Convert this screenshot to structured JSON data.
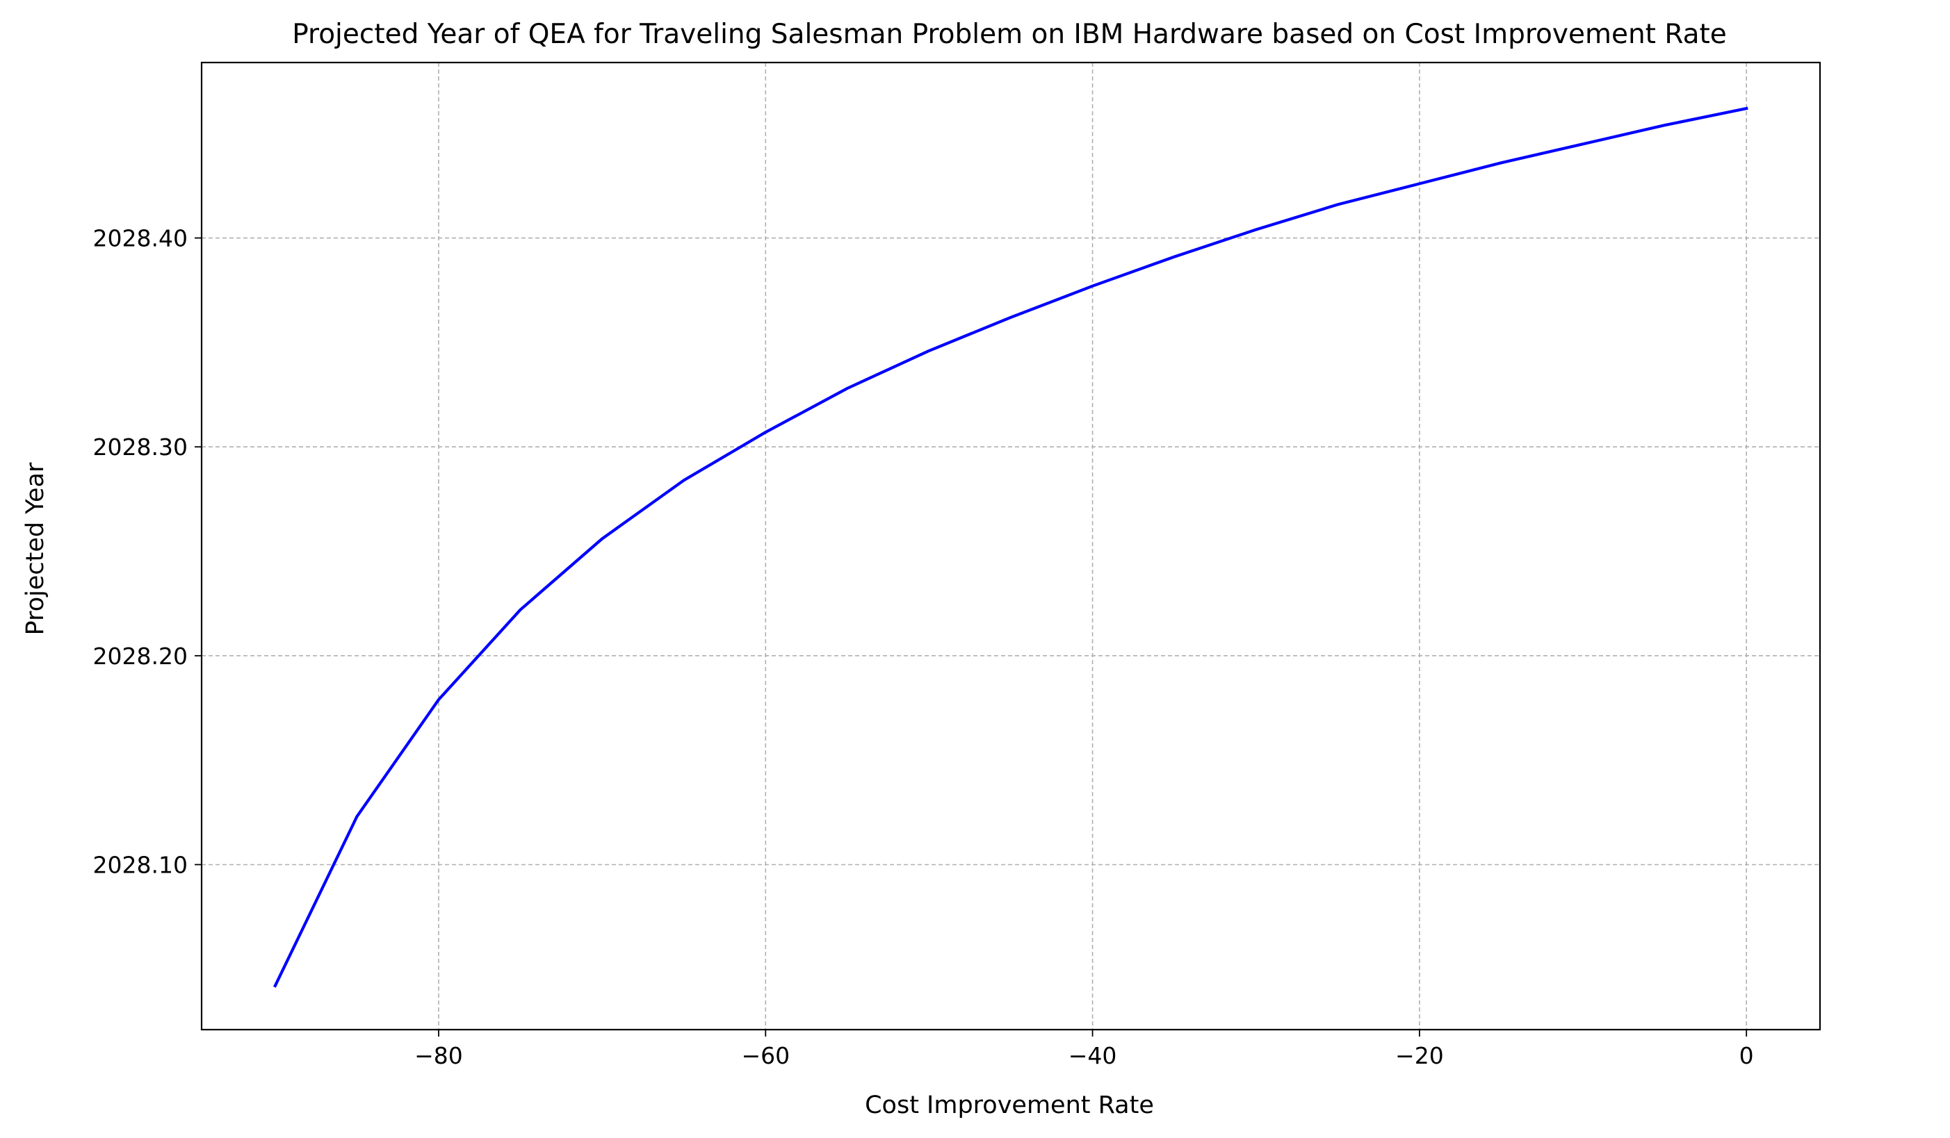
{
  "chart_data": {
    "type": "line",
    "title": "Projected Year of QEA for Traveling Salesman Problem on IBM Hardware based on Cost Improvement Rate",
    "xlabel": "Cost Improvement Rate",
    "ylabel": "Projected Year",
    "xlim": [
      -94.5,
      4.5
    ],
    "ylim": [
      2028.021,
      2028.484
    ],
    "xticks": [
      -80,
      -60,
      -40,
      -20,
      0
    ],
    "xtick_labels": [
      "−80",
      "−60",
      "−40",
      "−20",
      "0"
    ],
    "yticks": [
      2028.1,
      2028.2,
      2028.3,
      2028.4
    ],
    "ytick_labels": [
      "2028.10",
      "2028.20",
      "2028.30",
      "2028.40"
    ],
    "grid": true,
    "legend": "none",
    "series": [
      {
        "color": "#0000ff",
        "x": [
          -90,
          -85,
          -80,
          -75,
          -70,
          -65,
          -60,
          -55,
          -50,
          -45,
          -40,
          -35,
          -30,
          -25,
          -20,
          -15,
          -10,
          -5,
          0
        ],
        "y": [
          2028.042,
          2028.123,
          2028.179,
          2028.222,
          2028.256,
          2028.284,
          2028.307,
          2028.328,
          2028.346,
          2028.362,
          2028.377,
          2028.391,
          2028.404,
          2028.416,
          2028.426,
          2028.436,
          2028.445,
          2028.454,
          2028.462
        ]
      }
    ]
  }
}
